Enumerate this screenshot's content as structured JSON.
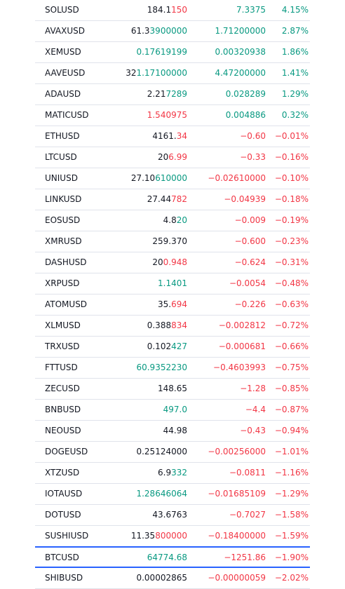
{
  "watchlist": {
    "rows": [
      {
        "symbol": "SOLUSD",
        "last_main": "184.1",
        "last_hl": "150",
        "last_color": "down",
        "change": "7.3375",
        "change_pct": "4.15%",
        "direction": "up"
      },
      {
        "symbol": "AVAXUSD",
        "last_main": "61.3",
        "last_hl": "3900000",
        "last_color": "up",
        "change": "1.71200000",
        "change_pct": "2.87%",
        "direction": "up"
      },
      {
        "symbol": "XEMUSD",
        "last_main": "",
        "last_hl": "0.17619199",
        "last_color": "up",
        "change": "0.00320938",
        "change_pct": "1.86%",
        "direction": "up"
      },
      {
        "symbol": "AAVEUSD",
        "last_main": "32",
        "last_hl": "1.17100000",
        "last_color": "up",
        "change": "4.47200000",
        "change_pct": "1.41%",
        "direction": "up"
      },
      {
        "symbol": "ADAUSD",
        "last_main": "2.21",
        "last_hl": "7289",
        "last_color": "up",
        "change": "0.028289",
        "change_pct": "1.29%",
        "direction": "up"
      },
      {
        "symbol": "MATICUSD",
        "last_main": "",
        "last_hl": "1.540975",
        "last_color": "down",
        "change": "0.004886",
        "change_pct": "0.32%",
        "direction": "up"
      },
      {
        "symbol": "ETHUSD",
        "last_main": "4161.",
        "last_hl": "34",
        "last_color": "down",
        "change": "−0.60",
        "change_pct": "−0.01%",
        "direction": "down"
      },
      {
        "symbol": "LTCUSD",
        "last_main": "20",
        "last_hl": "6.99",
        "last_color": "down",
        "change": "−0.33",
        "change_pct": "−0.16%",
        "direction": "down"
      },
      {
        "symbol": "UNIUSD",
        "last_main": "27.10",
        "last_hl": "610000",
        "last_color": "up",
        "change": "−0.02610000",
        "change_pct": "−0.10%",
        "direction": "down"
      },
      {
        "symbol": "LINKUSD",
        "last_main": "27.44",
        "last_hl": "782",
        "last_color": "down",
        "change": "−0.04939",
        "change_pct": "−0.18%",
        "direction": "down"
      },
      {
        "symbol": "EOSUSD",
        "last_main": "4.8",
        "last_hl": "20",
        "last_color": "up",
        "change": "−0.009",
        "change_pct": "−0.19%",
        "direction": "down"
      },
      {
        "symbol": "XMRUSD",
        "last_main": "259.370",
        "last_hl": "",
        "last_color": "up",
        "change": "−0.600",
        "change_pct": "−0.23%",
        "direction": "down"
      },
      {
        "symbol": "DASHUSD",
        "last_main": "20",
        "last_hl": "0.948",
        "last_color": "down",
        "change": "−0.624",
        "change_pct": "−0.31%",
        "direction": "down"
      },
      {
        "symbol": "XRPUSD",
        "last_main": "",
        "last_hl": "1.1401",
        "last_color": "up",
        "change": "−0.0054",
        "change_pct": "−0.48%",
        "direction": "down"
      },
      {
        "symbol": "ATOMUSD",
        "last_main": "35.",
        "last_hl": "694",
        "last_color": "down",
        "change": "−0.226",
        "change_pct": "−0.63%",
        "direction": "down"
      },
      {
        "symbol": "XLMUSD",
        "last_main": "0.388",
        "last_hl": "834",
        "last_color": "down",
        "change": "−0.002812",
        "change_pct": "−0.72%",
        "direction": "down"
      },
      {
        "symbol": "TRXUSD",
        "last_main": "0.102",
        "last_hl": "427",
        "last_color": "up",
        "change": "−0.000681",
        "change_pct": "−0.66%",
        "direction": "down"
      },
      {
        "symbol": "FTTUSD",
        "last_main": "",
        "last_hl": "60.9352230",
        "last_color": "up",
        "change": "−0.4603993",
        "change_pct": "−0.75%",
        "direction": "down"
      },
      {
        "symbol": "ZECUSD",
        "last_main": "148.65",
        "last_hl": "",
        "last_color": "up",
        "change": "−1.28",
        "change_pct": "−0.85%",
        "direction": "down"
      },
      {
        "symbol": "BNBUSD",
        "last_main": "",
        "last_hl": "497.0",
        "last_color": "up",
        "change": "−4.4",
        "change_pct": "−0.87%",
        "direction": "down"
      },
      {
        "symbol": "NEOUSD",
        "last_main": "44.98",
        "last_hl": "",
        "last_color": "up",
        "change": "−0.43",
        "change_pct": "−0.94%",
        "direction": "down"
      },
      {
        "symbol": "DOGEUSD",
        "last_main": "0.25124000",
        "last_hl": "",
        "last_color": "up",
        "change": "−0.00256000",
        "change_pct": "−1.01%",
        "direction": "down"
      },
      {
        "symbol": "XTZUSD",
        "last_main": "6.9",
        "last_hl": "332",
        "last_color": "up",
        "change": "−0.0811",
        "change_pct": "−1.16%",
        "direction": "down"
      },
      {
        "symbol": "IOTAUSD",
        "last_main": "",
        "last_hl": "1.28646064",
        "last_color": "up",
        "change": "−0.01685109",
        "change_pct": "−1.29%",
        "direction": "down"
      },
      {
        "symbol": "DOTUSD",
        "last_main": "43.6763",
        "last_hl": "",
        "last_color": "up",
        "change": "−0.7027",
        "change_pct": "−1.58%",
        "direction": "down"
      },
      {
        "symbol": "SUSHIUSD",
        "last_main": "11.35",
        "last_hl": "800000",
        "last_color": "down",
        "change": "−0.18400000",
        "change_pct": "−1.59%",
        "direction": "down"
      },
      {
        "symbol": "BTCUSD",
        "last_main": "",
        "last_hl": "64774.68",
        "last_color": "up",
        "change": "−1251.86",
        "change_pct": "−1.90%",
        "direction": "down",
        "selected": true
      },
      {
        "symbol": "SHIBUSD",
        "last_main": "0.00002865",
        "last_hl": "",
        "last_color": "up",
        "change": "−0.00000059",
        "change_pct": "−2.02%",
        "direction": "down"
      }
    ]
  },
  "colors": {
    "up": "#089981",
    "down": "#f23645",
    "text": "#131722",
    "divider": "#e0e3eb",
    "selection": "#2962ff"
  }
}
